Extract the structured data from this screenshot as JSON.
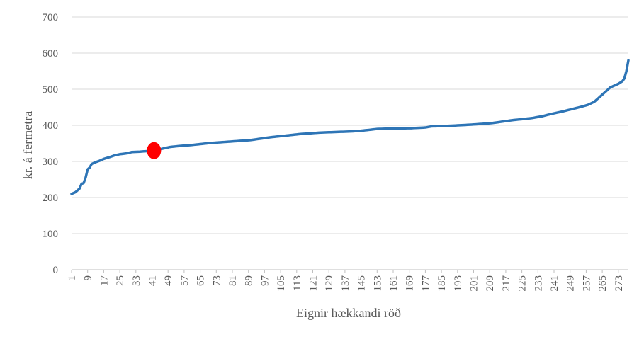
{
  "chart_data": {
    "type": "line",
    "xlabel": "Eignir hækkandi röð",
    "ylabel": "kr. á fermetra",
    "ylim": [
      0,
      700
    ],
    "yticks": [
      0,
      100,
      200,
      300,
      400,
      500,
      600,
      700
    ],
    "x_tick_labels": [
      "1",
      "9",
      "17",
      "25",
      "33",
      "41",
      "49",
      "57",
      "65",
      "73",
      "81",
      "89",
      "97",
      "105",
      "113",
      "121",
      "129",
      "137",
      "145",
      "153",
      "161",
      "169",
      "177",
      "185",
      "193",
      "201",
      "209",
      "217",
      "225",
      "233",
      "241",
      "249",
      "257",
      "265",
      "273"
    ],
    "x_range": [
      1,
      278
    ],
    "grid": "horizontal",
    "legend": "none",
    "series": [
      {
        "color": "#2e75b6",
        "anchors": [
          [
            1,
            210
          ],
          [
            3,
            215
          ],
          [
            5,
            225
          ],
          [
            6,
            238
          ],
          [
            7,
            240
          ],
          [
            8,
            255
          ],
          [
            9,
            278
          ],
          [
            10,
            283
          ],
          [
            11,
            293
          ],
          [
            13,
            298
          ],
          [
            15,
            302
          ],
          [
            17,
            307
          ],
          [
            20,
            312
          ],
          [
            22,
            316
          ],
          [
            25,
            320
          ],
          [
            28,
            322
          ],
          [
            31,
            326
          ],
          [
            35,
            327
          ],
          [
            42,
            330
          ],
          [
            46,
            335
          ],
          [
            50,
            340
          ],
          [
            55,
            343
          ],
          [
            60,
            345
          ],
          [
            65,
            348
          ],
          [
            70,
            351
          ],
          [
            75,
            353
          ],
          [
            80,
            355
          ],
          [
            85,
            357
          ],
          [
            90,
            359
          ],
          [
            95,
            363
          ],
          [
            100,
            367
          ],
          [
            105,
            370
          ],
          [
            110,
            373
          ],
          [
            115,
            376
          ],
          [
            120,
            378
          ],
          [
            125,
            380
          ],
          [
            130,
            381
          ],
          [
            135,
            382
          ],
          [
            140,
            383
          ],
          [
            145,
            385
          ],
          [
            150,
            388
          ],
          [
            153,
            390
          ],
          [
            160,
            391
          ],
          [
            170,
            392
          ],
          [
            177,
            394
          ],
          [
            180,
            397
          ],
          [
            190,
            399
          ],
          [
            200,
            402
          ],
          [
            205,
            404
          ],
          [
            210,
            406
          ],
          [
            215,
            410
          ],
          [
            220,
            414
          ],
          [
            225,
            417
          ],
          [
            230,
            420
          ],
          [
            235,
            425
          ],
          [
            240,
            432
          ],
          [
            245,
            438
          ],
          [
            250,
            445
          ],
          [
            255,
            452
          ],
          [
            258,
            457
          ],
          [
            261,
            465
          ],
          [
            263,
            475
          ],
          [
            265,
            485
          ],
          [
            267,
            495
          ],
          [
            269,
            505
          ],
          [
            271,
            510
          ],
          [
            273,
            515
          ],
          [
            275,
            522
          ],
          [
            276,
            530
          ],
          [
            277,
            550
          ],
          [
            278,
            580
          ]
        ]
      }
    ],
    "highlight": {
      "x": 42,
      "y": 330,
      "color": "#ff0000"
    }
  }
}
